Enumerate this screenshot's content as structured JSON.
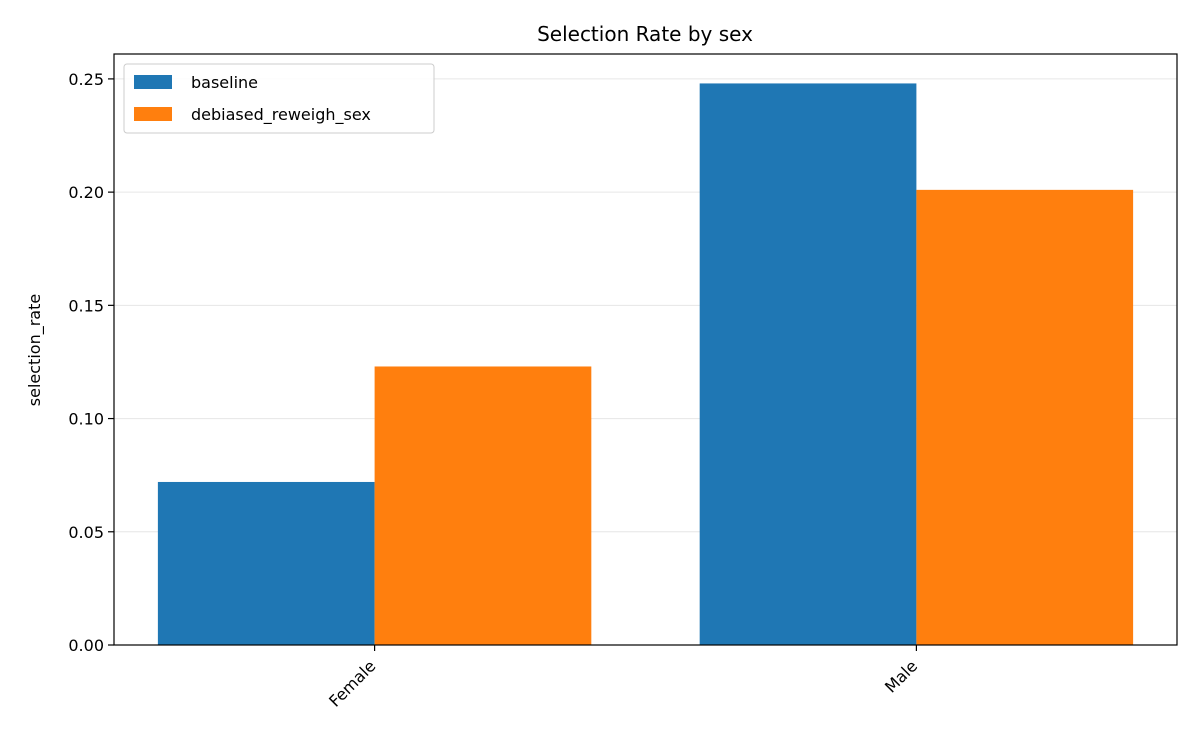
{
  "chart_data": {
    "type": "bar",
    "title": "Selection Rate by sex",
    "xlabel": "",
    "ylabel": "selection_rate",
    "categories": [
      "Female",
      "Male"
    ],
    "series": [
      {
        "name": "baseline",
        "values": [
          0.072,
          0.248
        ],
        "color": "#1f77b4"
      },
      {
        "name": "debiased_reweigh_sex",
        "values": [
          0.123,
          0.201
        ],
        "color": "#ff7f0e"
      }
    ],
    "ylim": [
      0,
      0.261
    ],
    "yticks": [
      0.0,
      0.05,
      0.1,
      0.15,
      0.2,
      0.25
    ],
    "ytick_labels": [
      "0.00",
      "0.05",
      "0.10",
      "0.15",
      "0.20",
      "0.25"
    ],
    "grid": true,
    "legend_position": "top-left"
  }
}
